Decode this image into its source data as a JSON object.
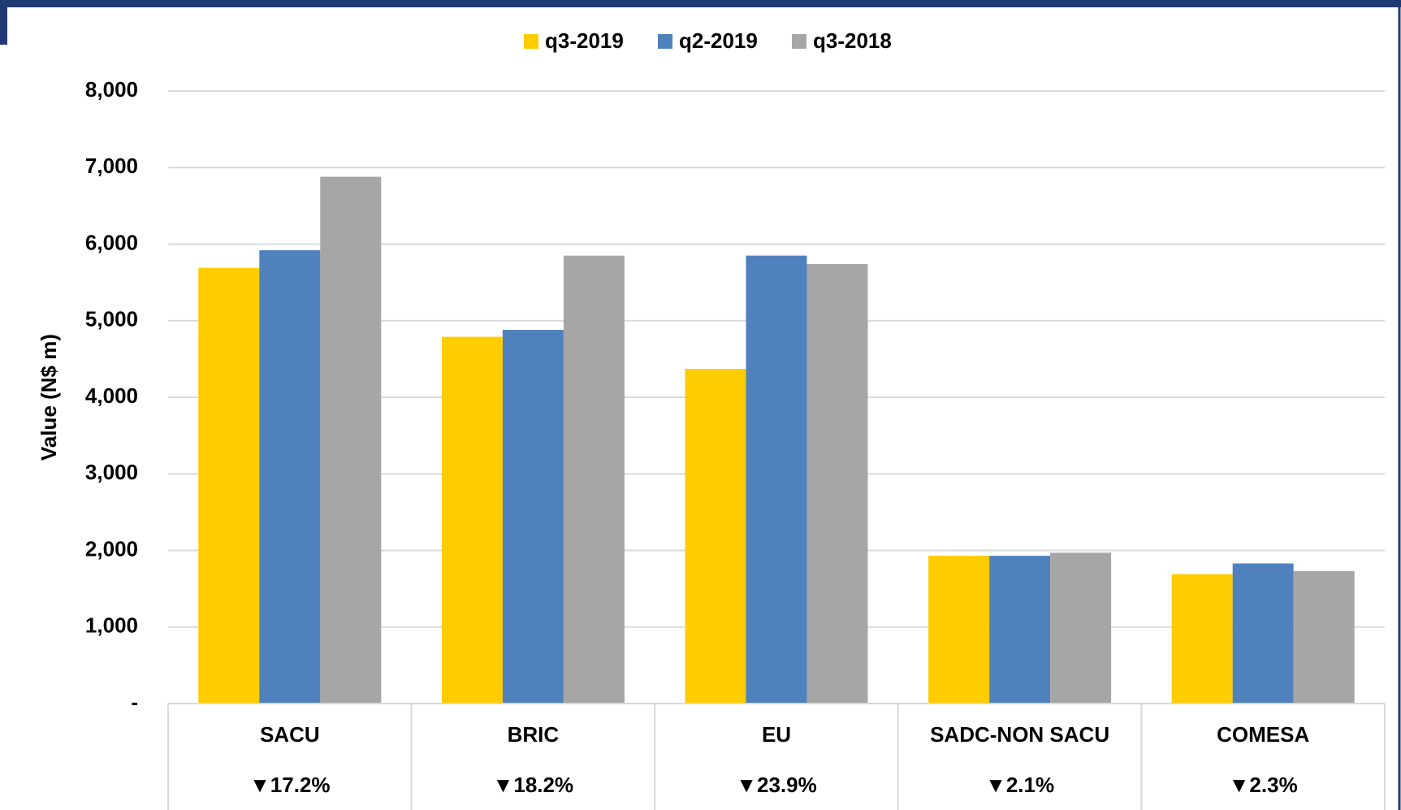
{
  "chart_data": {
    "type": "bar",
    "y_label": "Value (N$ m)",
    "categories": [
      "SACU",
      "BRIC",
      "EU",
      "SADC-NON SACU",
      "COMESA"
    ],
    "change_labels": [
      "▼17.2%",
      "▼18.2%",
      "▼23.9%",
      "▼2.1%",
      "▼2.3%"
    ],
    "series": [
      {
        "name": "q3-2019",
        "color": "#ffcc00",
        "values": [
          5690,
          4790,
          4370,
          1930,
          1690
        ]
      },
      {
        "name": "q2-2019",
        "color": "#4f81bd",
        "values": [
          5920,
          4880,
          5850,
          1930,
          1830
        ]
      },
      {
        "name": "q3-2018",
        "color": "#a6a6a6",
        "values": [
          6880,
          5850,
          5740,
          1970,
          1730
        ]
      }
    ],
    "ylim": [
      0,
      8000
    ],
    "yticks": [
      {
        "value": 0,
        "label": "-"
      },
      {
        "value": 1000,
        "label": "1,000"
      },
      {
        "value": 2000,
        "label": "2,000"
      },
      {
        "value": 3000,
        "label": "3,000"
      },
      {
        "value": 4000,
        "label": "4,000"
      },
      {
        "value": 5000,
        "label": "5,000"
      },
      {
        "value": 6000,
        "label": "6,000"
      },
      {
        "value": 7000,
        "label": "7,000"
      },
      {
        "value": 8000,
        "label": "8,000"
      }
    ],
    "grid": true
  }
}
